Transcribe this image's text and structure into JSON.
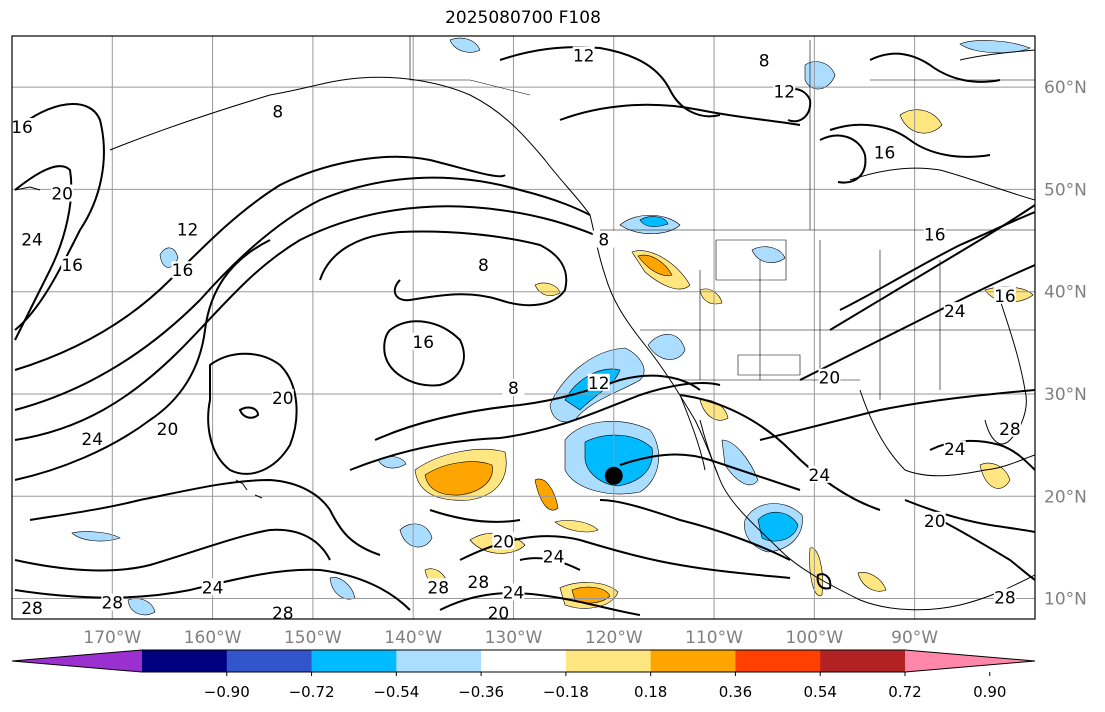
{
  "title": "2025080700 F108",
  "map": {
    "lon_range": [
      -180,
      -78
    ],
    "lat_range": [
      8,
      65
    ],
    "lon_ticks": [
      {
        "value": -170,
        "label": "170°W"
      },
      {
        "value": -160,
        "label": "160°W"
      },
      {
        "value": -150,
        "label": "150°W"
      },
      {
        "value": -140,
        "label": "140°W"
      },
      {
        "value": -130,
        "label": "130°W"
      },
      {
        "value": -120,
        "label": "120°W"
      },
      {
        "value": -110,
        "label": "110°W"
      },
      {
        "value": -100,
        "label": "100°W"
      },
      {
        "value": -90,
        "label": "90°W"
      }
    ],
    "lat_ticks": [
      {
        "value": 10,
        "label": "10°N"
      },
      {
        "value": 20,
        "label": "20°N"
      },
      {
        "value": 30,
        "label": "30°N"
      },
      {
        "value": 40,
        "label": "40°N"
      },
      {
        "value": 50,
        "label": "50°N"
      },
      {
        "value": 60,
        "label": "60°N"
      }
    ],
    "grid": true,
    "marker": {
      "lon": -120,
      "lat": 22,
      "color": "#000000"
    }
  },
  "colorbar": {
    "colors": [
      "#9b30d0",
      "#000080",
      "#3355cc",
      "#00bbff",
      "#aaddff",
      "#ffffff",
      "#ffe680",
      "#ffa500",
      "#ff4000",
      "#b22222",
      "#ff88aa"
    ],
    "ticks": [
      "−0.90",
      "−0.72",
      "−0.54",
      "−0.36",
      "−0.18",
      "0.18",
      "0.36",
      "0.54",
      "0.72",
      "0.90"
    ]
  },
  "contour_labels": [
    {
      "text": "12",
      "lon": -123,
      "lat": 63
    },
    {
      "text": "12",
      "lon": -103,
      "lat": 59.5
    },
    {
      "text": "8",
      "lon": -105,
      "lat": 62.5
    },
    {
      "text": "16",
      "lon": -93,
      "lat": 53.5
    },
    {
      "text": "16",
      "lon": -179,
      "lat": 56
    },
    {
      "text": "20",
      "lon": -175,
      "lat": 49.5
    },
    {
      "text": "24",
      "lon": -178,
      "lat": 45
    },
    {
      "text": "16",
      "lon": -174,
      "lat": 42.5
    },
    {
      "text": "12",
      "lon": -162.5,
      "lat": 46
    },
    {
      "text": "16",
      "lon": -163,
      "lat": 42
    },
    {
      "text": "8",
      "lon": -153.5,
      "lat": 57.5
    },
    {
      "text": "8",
      "lon": -133,
      "lat": 42.5
    },
    {
      "text": "8",
      "lon": -121,
      "lat": 45
    },
    {
      "text": "16",
      "lon": -139,
      "lat": 35
    },
    {
      "text": "8",
      "lon": -130,
      "lat": 30.5
    },
    {
      "text": "12",
      "lon": -121.5,
      "lat": 31
    },
    {
      "text": "20",
      "lon": -153,
      "lat": 29.5
    },
    {
      "text": "20",
      "lon": -164.5,
      "lat": 26.5
    },
    {
      "text": "24",
      "lon": -172,
      "lat": 25.5
    },
    {
      "text": "16",
      "lon": -88,
      "lat": 45.5
    },
    {
      "text": "16",
      "lon": -81,
      "lat": 39.5
    },
    {
      "text": "24",
      "lon": -86,
      "lat": 38
    },
    {
      "text": "20",
      "lon": -98.5,
      "lat": 31.5
    },
    {
      "text": "28",
      "lon": -80.5,
      "lat": 26.5
    },
    {
      "text": "24",
      "lon": -86,
      "lat": 24.5
    },
    {
      "text": "24",
      "lon": -99.5,
      "lat": 22
    },
    {
      "text": "20",
      "lon": -88,
      "lat": 17.5
    },
    {
      "text": "28",
      "lon": -81,
      "lat": 10
    },
    {
      "text": "20",
      "lon": -131,
      "lat": 15.5
    },
    {
      "text": "24",
      "lon": -126,
      "lat": 14
    },
    {
      "text": "28",
      "lon": -137.5,
      "lat": 11
    },
    {
      "text": "28",
      "lon": -133.5,
      "lat": 11.5
    },
    {
      "text": "24",
      "lon": -130,
      "lat": 10.5
    },
    {
      "text": "20",
      "lon": -131.5,
      "lat": 8.5
    },
    {
      "text": "28",
      "lon": -153,
      "lat": 8.5
    },
    {
      "text": "24",
      "lon": -160,
      "lat": 11
    },
    {
      "text": "28",
      "lon": -170,
      "lat": 9.5
    },
    {
      "text": "28",
      "lon": -178,
      "lat": 9
    }
  ]
}
